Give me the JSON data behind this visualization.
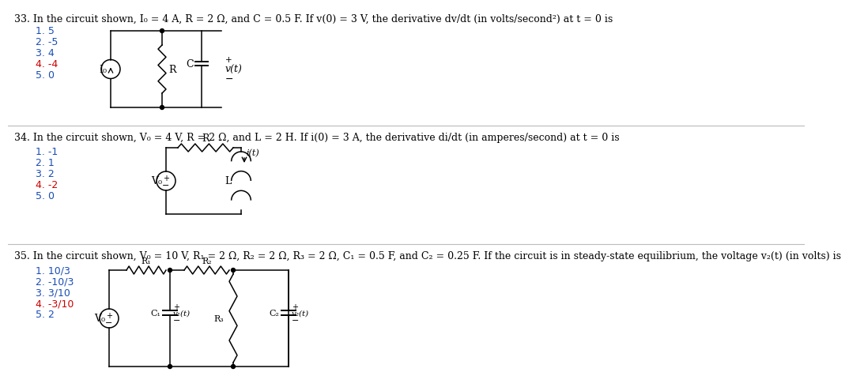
{
  "bg_color": "#ffffff",
  "text_color": "#000000",
  "blue_color": "#1a4db5",
  "red_color": "#cc0000",
  "q33": {
    "line": "33. In the circuit shown, I₀ = 4 A, R = 2 Ω, and C = 0.5 F. If v(0) = 3 V, the derivative dv/dt (in volts/second²) at t = 0 is",
    "options": [
      "1. 5",
      "2. -5",
      "3. 4",
      "4. -4",
      "5. 0"
    ],
    "red_option": 3
  },
  "q34": {
    "line": "34. In the circuit shown, V₀ = 4 V, R = 2 Ω, and L = 2 H. If i(0) = 3 A, the derivative di/dt (in amperes/second) at t = 0 is",
    "options": [
      "1. -1",
      "2. 1",
      "3. 2",
      "4. -2",
      "5. 0"
    ],
    "red_option": 3
  },
  "q35": {
    "line": "35. In the circuit shown, V₀ = 10 V, R₁ = 2 Ω, R₂ = 2 Ω, R₃ = 2 Ω, C₁ = 0.5 F, and C₂ = 0.25 F. If the circuit is in steady-state equilibrium, the voltage v₂(t) (in volts) is",
    "options": [
      "1. 10/3",
      "2. -10/3",
      "3. 3/10",
      "4. -3/10",
      "5. 2"
    ],
    "red_option": 3
  },
  "divider_color": "#bbbbbb",
  "font_size": 9.0,
  "circuit_lw": 1.1
}
